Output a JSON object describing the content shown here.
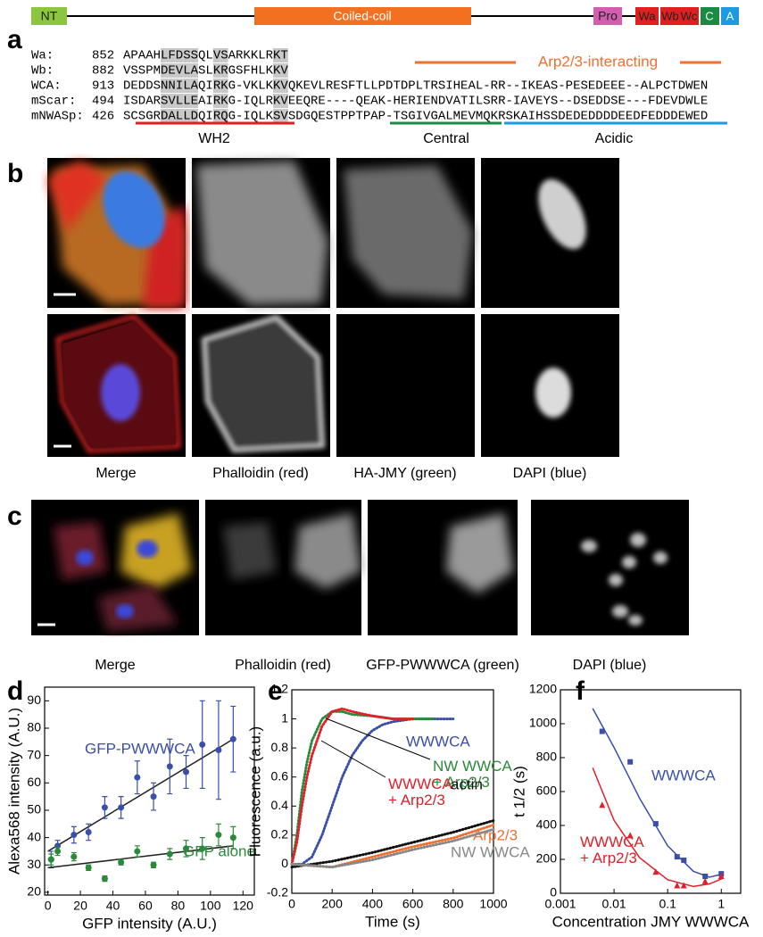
{
  "panel_a": {
    "label": "a",
    "domains": [
      "NT",
      "Coiled-coil",
      "Pro",
      "Wa",
      "Wb",
      "Wc",
      "C",
      "A"
    ],
    "alignment": [
      {
        "name": "Wa:",
        "start": 852,
        "sequence": "APAAHLFDSSQLVSARKKLRKT"
      },
      {
        "name": "Wb:",
        "start": 882,
        "sequence": "VSSPMDEVLASLKRGSFHLKKV"
      },
      {
        "name": "WCA:",
        "start": 913,
        "sequence": "DEDDSNNILAQIRKG-VKLKKVQKEVLRESFTLLPDTDPLTRSIHEAL-RR--IKEAS-PESEDEEE--ALPCTDWEN"
      },
      {
        "name": "mScar:",
        "start": 494,
        "sequence": "ISDARSVLLEAIRKG-IQLRKVEEQRE----QEAK-HERIENDVATILSRR-IAVEYS--DSEDDSE---FDEVDWLE"
      },
      {
        "name": "mNWASp:",
        "start": 426,
        "sequence": "SCSGRDALLDQIRQG-IQLKSVSDGQESTPPTPAP-TSGIVGALMEVMQKRSKAIHSSDEDEDDDDEEDFEDDDEWED"
      }
    ],
    "arp_label": "Arp2/3-interacting",
    "regions": [
      "WH2",
      "Central",
      "Acidic"
    ]
  },
  "panel_b": {
    "label": "b",
    "captions": [
      "Merge",
      "Phalloidin (red)",
      "HA-JMY (green)",
      "DAPI (blue)"
    ]
  },
  "panel_c": {
    "label": "c",
    "captions": [
      "Merge",
      "Phalloidin (red)",
      "GFP-PWWWCA (green)",
      "DAPI (blue)"
    ]
  },
  "chart_data": [
    {
      "type": "scatter",
      "panel": "d",
      "xlabel": "GFP intensity (A.U.)",
      "ylabel": "Alexa568 intensity (A.U.)",
      "xlim": [
        -2,
        127
      ],
      "ylim": [
        19,
        95
      ],
      "xticks": [
        0,
        20,
        40,
        60,
        80,
        100,
        120
      ],
      "yticks": [
        20,
        30,
        40,
        50,
        60,
        70,
        80,
        90
      ],
      "series": [
        {
          "name": "GFP-PWWWCA",
          "color": "#3a4fa8",
          "marker": "circle",
          "x": [
            2,
            6,
            16,
            25,
            35,
            45,
            55,
            65,
            75,
            85,
            95,
            105,
            114
          ],
          "values": [
            32,
            37,
            41,
            42,
            51,
            51,
            62,
            55,
            66,
            64,
            74,
            72,
            76
          ],
          "errors": [
            3,
            2,
            3,
            3,
            4,
            4,
            6,
            5,
            10,
            6,
            16,
            18,
            12
          ],
          "fit_x": [
            0,
            114
          ],
          "fit_y": [
            35,
            76
          ]
        },
        {
          "name": "GFP alone",
          "color": "#2a8a3a",
          "marker": "circle",
          "x": [
            2,
            6,
            16,
            25,
            35,
            45,
            55,
            65,
            75,
            85,
            95,
            105,
            114
          ],
          "values": [
            32,
            35,
            33,
            29,
            25,
            31,
            35,
            30,
            34,
            36,
            36,
            41,
            40
          ],
          "errors": [
            2,
            1.5,
            1.5,
            1,
            1,
            1,
            2,
            1,
            2,
            3,
            4,
            4,
            4
          ],
          "fit_x": [
            0,
            114
          ],
          "fit_y": [
            29,
            37
          ]
        }
      ]
    },
    {
      "type": "line",
      "panel": "e",
      "xlabel": "Time (s)",
      "ylabel": "Fluorescence (a.u.)",
      "xlim": [
        0,
        1000
      ],
      "ylim": [
        -0.2,
        1.2
      ],
      "xticks": [
        0,
        200,
        400,
        600,
        800,
        1000
      ],
      "yticks": [
        -0.2,
        0,
        0.2,
        0.4,
        0.6,
        0.8,
        1,
        1.2
      ],
      "series": [
        {
          "name": "WWWCA",
          "color": "#3a4fa8",
          "x": [
            0,
            50,
            100,
            150,
            200,
            250,
            300,
            350,
            400,
            450,
            500,
            600,
            700,
            800
          ],
          "values": [
            0,
            0,
            0.05,
            0.2,
            0.4,
            0.6,
            0.75,
            0.85,
            0.92,
            0.96,
            0.98,
            1,
            1,
            1
          ]
        },
        {
          "name": "NW WWCA + Arp2/3",
          "color": "#2a8a3a",
          "x": [
            0,
            25,
            50,
            75,
            100,
            150,
            200,
            250,
            300,
            400,
            500,
            600,
            700
          ],
          "values": [
            0,
            0.2,
            0.5,
            0.7,
            0.85,
            1,
            1.05,
            1.05,
            1.03,
            1.02,
            1,
            1,
            1
          ]
        },
        {
          "name": "WWWCA + Arp2/3",
          "color": "#e0202a",
          "x": [
            0,
            25,
            50,
            75,
            100,
            150,
            200,
            250,
            300,
            400,
            500,
            600
          ],
          "values": [
            0,
            0.15,
            0.4,
            0.6,
            0.75,
            0.95,
            1.05,
            1.07,
            1.05,
            1.02,
            1,
            1
          ]
        },
        {
          "name": "actin",
          "color": "#111111",
          "x": [
            0,
            200,
            400,
            600,
            800,
            1000
          ],
          "values": [
            -0.02,
            0.02,
            0.08,
            0.15,
            0.22,
            0.3
          ]
        },
        {
          "name": "Arp2/3",
          "color": "#f07030",
          "x": [
            0,
            200,
            400,
            600,
            800,
            1000
          ],
          "values": [
            0,
            -0.02,
            0.05,
            0.12,
            0.18,
            0.27
          ]
        },
        {
          "name": "NW WWCA",
          "color": "#888888",
          "x": [
            0,
            200,
            400,
            600,
            800,
            1000
          ],
          "values": [
            0,
            -0.02,
            0.03,
            0.1,
            0.16,
            0.24
          ]
        }
      ]
    },
    {
      "type": "scatter",
      "panel": "f",
      "xlabel": "Concentration JMY WWWCA",
      "ylabel": "t 1/2  (s)",
      "xscale": "log",
      "xlim": [
        0.001,
        2.3
      ],
      "ylim": [
        0,
        1200
      ],
      "xticks": [
        0.001,
        0.01,
        0.1,
        1
      ],
      "yticks": [
        0,
        200,
        400,
        600,
        800,
        1000,
        1200
      ],
      "series": [
        {
          "name": "WWWCA",
          "color": "#3a4fa8",
          "marker": "square",
          "x": [
            0.006,
            0.02,
            0.06,
            0.15,
            0.2,
            0.5,
            1
          ],
          "values": [
            955,
            775,
            410,
            215,
            195,
            100,
            115
          ],
          "fit_x": [
            0.004,
            0.01,
            0.03,
            0.1,
            0.3,
            0.6,
            1.1
          ],
          "fit_y": [
            1090,
            860,
            560,
            280,
            130,
            95,
            115
          ]
        },
        {
          "name": "WWWCA + Arp2/3",
          "color": "#e0202a",
          "marker": "triangle",
          "x": [
            0.006,
            0.02,
            0.06,
            0.15,
            0.2,
            0.5,
            1
          ],
          "values": [
            520,
            340,
            125,
            45,
            45,
            70,
            100
          ],
          "fit_x": [
            0.004,
            0.01,
            0.03,
            0.1,
            0.3,
            0.6,
            1.1
          ],
          "fit_y": [
            740,
            430,
            210,
            80,
            40,
            55,
            90
          ]
        }
      ]
    }
  ]
}
